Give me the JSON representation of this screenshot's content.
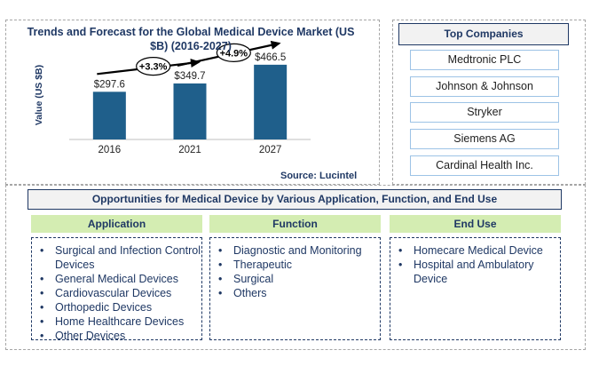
{
  "chart_data": {
    "type": "bar",
    "title": "Trends and Forecast for the Global Medical Device Market (US $B) (2016-2027)",
    "ylabel": "Value (US $B)",
    "categories": [
      "2016",
      "2021",
      "2027"
    ],
    "values": [
      297.6,
      349.7,
      466.5
    ],
    "value_labels": [
      "$297.6",
      "$349.7",
      "$466.5"
    ],
    "ylim": [
      0,
      560
    ],
    "bar_color": "#1f5f8b",
    "growth_annotations": [
      "+3.3%",
      "+4.9%"
    ]
  },
  "source": "Source: Lucintel",
  "top_companies": {
    "title": "Top Companies",
    "items": [
      "Medtronic PLC",
      "Johnson & Johnson",
      "Stryker",
      "Siemens AG",
      "Cardinal Health Inc."
    ]
  },
  "opportunities": {
    "title": "Opportunities for Medical Device by Various Application, Function, and End Use",
    "columns": [
      {
        "header": "Application",
        "items": [
          "Surgical and Infection Control Devices",
          "General Medical Devices",
          "Cardiovascular Devices",
          "Orthopedic Devices",
          "Home Healthcare Devices",
          "Other Devices"
        ]
      },
      {
        "header": "Function",
        "items": [
          "Diagnostic and Monitoring",
          "Therapeutic",
          "Surgical",
          "Others"
        ]
      },
      {
        "header": "End Use",
        "items": [
          "Homecare Medical Device",
          "Hospital and Ambulatory Device"
        ]
      }
    ]
  },
  "colors": {
    "accent": "#1f3864",
    "header_green": "#d4edb2",
    "company_border": "#9dc3e6"
  }
}
